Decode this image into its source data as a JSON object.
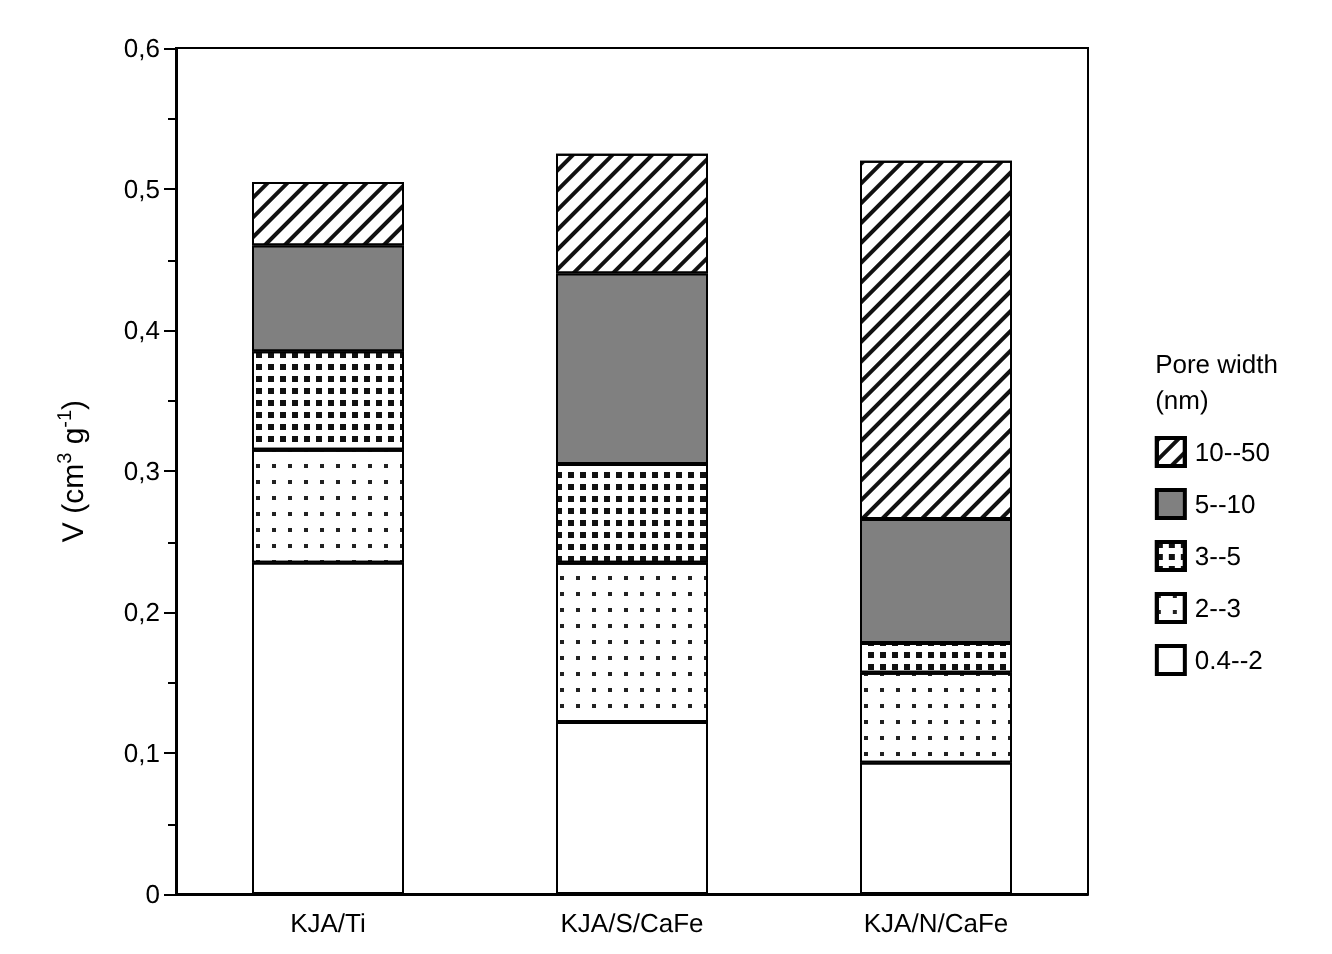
{
  "chart_data": {
    "type": "bar",
    "stacked": true,
    "categories": [
      "KJA/Ti",
      "KJA/S/CaFe",
      "KJA/N/CaFe"
    ],
    "ylabel": "V (cm$^{3}$ g$^{-1}$)",
    "legend_title": "Pore width\n(nm)",
    "legend": "right",
    "grid": false,
    "ylim": [
      0,
      0.6
    ],
    "yticks": [
      0,
      {
        "value": 0.1,
        "label": "0,1"
      },
      {
        "value": 0.2,
        "label": "0,2"
      },
      {
        "value": 0.3,
        "label": "0,3"
      },
      {
        "value": 0.4,
        "label": "0,4"
      },
      {
        "value": 0.5,
        "label": "0,5"
      },
      {
        "value": 0.6,
        "label": "0,6"
      }
    ],
    "series": [
      {
        "name": "0.4--2",
        "color": "#ffffff",
        "values": [
          0.235,
          0.122,
          0.093
        ]
      },
      {
        "name": "2--3",
        "color": "#ffffff",
        "values": [
          0.08,
          0.113,
          0.064
        ]
      },
      {
        "name": "3--5",
        "color": "#ffffff",
        "values": [
          0.07,
          0.07,
          0.021
        ]
      },
      {
        "name": "5--10",
        "color": "#808080",
        "values": [
          0.075,
          0.135,
          0.088
        ]
      },
      {
        "name": "10--50",
        "color": "#ffffff",
        "values": [
          0.045,
          0.085,
          0.254
        ]
      }
    ]
  }
}
